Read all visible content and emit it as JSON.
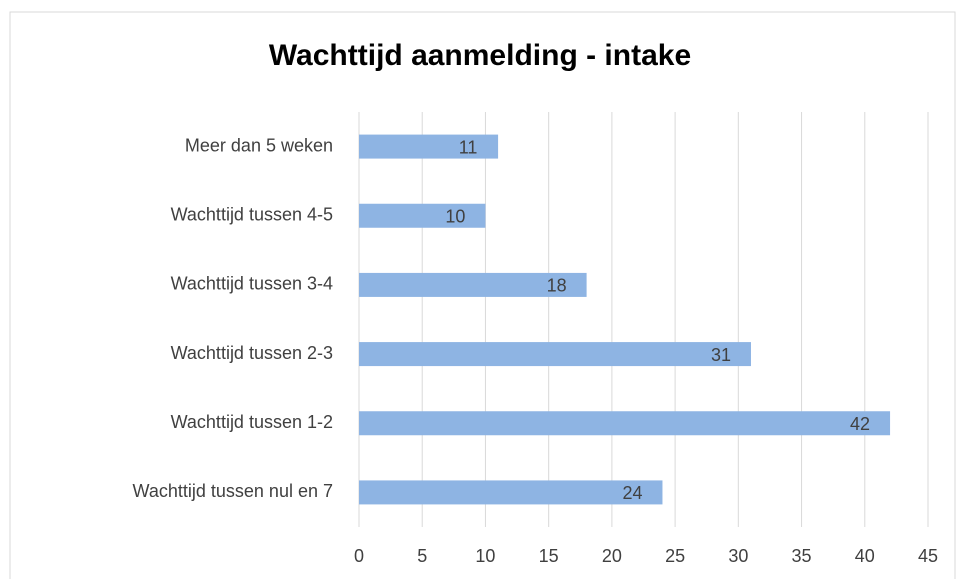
{
  "chart_data": {
    "type": "bar",
    "orientation": "horizontal",
    "title": "Wachttijd aanmelding - intake",
    "categories": [
      "Meer dan 5 weken",
      "Wachttijd tussen 4-5",
      "Wachttijd tussen 3-4",
      "Wachttijd tussen 2-3",
      "Wachttijd tussen 1-2",
      "Wachttijd tussen nul en 7"
    ],
    "values": [
      11,
      10,
      18,
      31,
      42,
      24
    ],
    "color": "#8eb4e3",
    "xlim": [
      0,
      45
    ],
    "xticks": [
      0,
      5,
      10,
      15,
      20,
      25,
      30,
      35,
      40,
      45
    ],
    "grid": true
  }
}
